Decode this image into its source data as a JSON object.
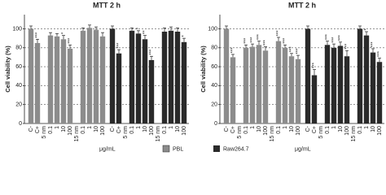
{
  "chart_data": [
    {
      "type": "bar",
      "title": "MTT 2 h",
      "y_label": "Cell viability (%)",
      "x_label": "μg/mL",
      "categories": [
        "C-",
        "C+",
        "0.1",
        "1",
        "10",
        "100",
        "0.1",
        "1",
        "10",
        "100"
      ],
      "category_groups": [
        "5 nm",
        "15 nm"
      ],
      "ylim": [
        0,
        115
      ],
      "yticks": [
        0,
        20,
        40,
        60,
        80,
        100
      ],
      "grid": true,
      "series": [
        {
          "name": "PBL",
          "color": "#8c8c8c",
          "values": [
            100,
            85,
            93,
            92,
            89,
            79,
            98,
            101,
            99,
            92
          ],
          "errors": [
            3,
            4,
            3,
            3,
            4,
            4,
            3,
            3,
            3,
            4
          ],
          "labels": [
            null,
            "***",
            null,
            null,
            "*",
            "***",
            null,
            null,
            null,
            null
          ]
        },
        {
          "name": "Raw264.7",
          "color": "#2a2a2a",
          "values": [
            100,
            74,
            98,
            95,
            89,
            67,
            97,
            98,
            97,
            86
          ],
          "errors": [
            3,
            4,
            3,
            3,
            4,
            4,
            4,
            4,
            4,
            4
          ],
          "labels": [
            null,
            "***",
            null,
            "*",
            "**",
            "***",
            null,
            null,
            null,
            "*"
          ]
        }
      ]
    },
    {
      "type": "bar",
      "title": "MTT 2 h",
      "y_label": "Cell viability (%)",
      "x_label": "μg/mL",
      "categories": [
        "C-",
        "C+",
        "0.1",
        "1",
        "10",
        "100",
        "0.1",
        "1",
        "10",
        "100"
      ],
      "category_groups": [
        "5 nm",
        "15 nm"
      ],
      "ylim": [
        0,
        115
      ],
      "yticks": [
        0,
        20,
        40,
        60,
        80,
        100
      ],
      "grid": true,
      "series": [
        {
          "name": "PBL",
          "color": "#8c8c8c",
          "values": [
            100,
            70,
            80,
            81,
            83,
            77,
            87,
            80,
            71,
            68
          ],
          "errors": [
            3,
            3,
            3,
            3,
            4,
            4,
            4,
            3,
            3,
            4
          ],
          "labels": [
            null,
            "***",
            "***",
            "***",
            "***",
            "***",
            "***",
            "***",
            "***",
            "***"
          ]
        },
        {
          "name": "Raw264.7",
          "color": "#2a2a2a",
          "values": [
            100,
            51,
            83,
            80,
            82,
            71,
            100,
            93,
            75,
            65
          ],
          "errors": [
            3,
            6,
            4,
            4,
            4,
            6,
            3,
            4,
            4,
            4
          ],
          "labels": [
            null,
            "***",
            "***",
            "***",
            "***",
            "***",
            null,
            "*",
            "***",
            "***"
          ]
        }
      ]
    }
  ]
}
